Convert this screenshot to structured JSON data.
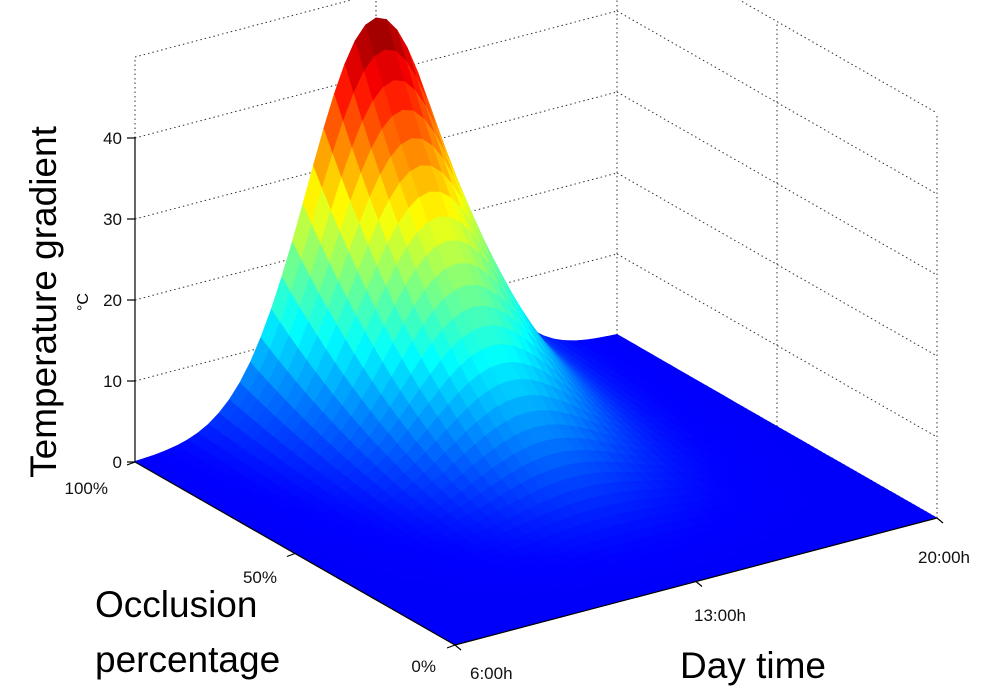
{
  "chart_data": {
    "type": "surface",
    "title": "",
    "zlabel": "Temperature gradient",
    "zunit": "°C",
    "xlabel": "Day time",
    "ylabel_line1": "Occlusion",
    "ylabel_line2": "percentage",
    "x_ticks": [
      "6:00h",
      "13:00h",
      "20:00h"
    ],
    "y_ticks": [
      "0%",
      "50%",
      "100%"
    ],
    "z_ticks": [
      "0",
      "10",
      "20",
      "30",
      "40"
    ],
    "x_range": [
      "6:00h",
      "20:00h"
    ],
    "y_range": [
      0,
      100
    ],
    "zlim": [
      0,
      50
    ],
    "grid": true,
    "colormap": "jet",
    "peak": {
      "day_time": "13:00h",
      "occlusion_percent": 100,
      "value": 47
    },
    "colors": {
      "jet_stops": [
        "#00007f",
        "#0000ff",
        "#007fff",
        "#00ffff",
        "#7fff7f",
        "#ffff00",
        "#ff7f00",
        "#ff0000",
        "#7f0000"
      ]
    }
  }
}
